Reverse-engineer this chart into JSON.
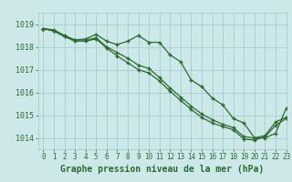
{
  "title": "Graphe pression niveau de la mer (hPa)",
  "bg_color": "#cce8e8",
  "grid_color": "#aacccc",
  "line_color": "#2d6a2d",
  "xlim": [
    -0.5,
    23
  ],
  "ylim": [
    1013.5,
    1019.5
  ],
  "yticks": [
    1014,
    1015,
    1016,
    1017,
    1018,
    1019
  ],
  "xticks": [
    0,
    1,
    2,
    3,
    4,
    5,
    6,
    7,
    8,
    9,
    10,
    11,
    12,
    13,
    14,
    15,
    16,
    17,
    18,
    19,
    20,
    21,
    22,
    23
  ],
  "series1_x": [
    0,
    1,
    2,
    3,
    4,
    5,
    6,
    7,
    8,
    9,
    10,
    11,
    12,
    13,
    14,
    15,
    16,
    17,
    18,
    19,
    20,
    21,
    22,
    23
  ],
  "series1_y": [
    1018.8,
    1018.75,
    1018.5,
    1018.3,
    1018.35,
    1018.55,
    1018.25,
    1018.1,
    1018.25,
    1018.5,
    1018.2,
    1018.2,
    1017.65,
    1017.35,
    1016.55,
    1016.25,
    1015.75,
    1015.45,
    1014.85,
    1014.65,
    1014.0,
    1014.0,
    1014.2,
    1015.3
  ],
  "series2_x": [
    0,
    1,
    2,
    3,
    4,
    5,
    6,
    7,
    8,
    9,
    10,
    11,
    12,
    13,
    14,
    15,
    16,
    17,
    18,
    19,
    20,
    21,
    22,
    23
  ],
  "series2_y": [
    1018.8,
    1018.7,
    1018.5,
    1018.3,
    1018.3,
    1018.4,
    1018.0,
    1017.75,
    1017.5,
    1017.2,
    1017.05,
    1016.65,
    1016.2,
    1015.8,
    1015.4,
    1015.05,
    1014.8,
    1014.6,
    1014.45,
    1014.05,
    1014.0,
    1014.1,
    1014.7,
    1014.9
  ],
  "series3_x": [
    0,
    1,
    2,
    3,
    4,
    5,
    6,
    7,
    8,
    9,
    10,
    11,
    12,
    13,
    14,
    15,
    16,
    17,
    18,
    19,
    20,
    21,
    22,
    23
  ],
  "series3_y": [
    1018.8,
    1018.7,
    1018.45,
    1018.25,
    1018.25,
    1018.35,
    1017.95,
    1017.6,
    1017.3,
    1017.0,
    1016.85,
    1016.5,
    1016.05,
    1015.65,
    1015.25,
    1014.9,
    1014.65,
    1014.5,
    1014.35,
    1013.95,
    1013.9,
    1014.05,
    1014.55,
    1014.85
  ],
  "title_fontsize": 7,
  "tick_fontsize": 5.5,
  "xlabel_fontsize": 7
}
